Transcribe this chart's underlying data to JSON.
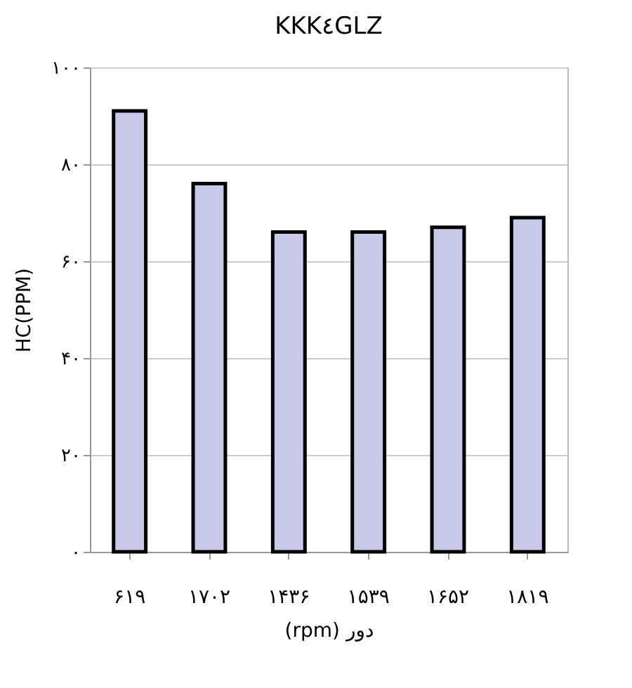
{
  "chart_data": {
    "type": "bar",
    "title": "KKK٤GLZ",
    "xlabel": "(rpm) دور",
    "ylabel": "HC(PPM)",
    "categories": [
      "۶۱۹",
      "۱۷۰۲",
      "۱۴۳۶",
      "۱۵۳۹",
      "۱۶۵۲",
      "۱۸۱۹"
    ],
    "values": [
      91,
      76,
      66,
      66,
      67,
      69
    ],
    "color": "#c8c8e8",
    "ylim": [
      0,
      100
    ],
    "yticks": [
      {
        "value": 0,
        "label": "۰"
      },
      {
        "value": 20,
        "label": "۲۰"
      },
      {
        "value": 40,
        "label": "۴۰"
      },
      {
        "value": 60,
        "label": "۶۰"
      },
      {
        "value": 80,
        "label": "۸۰"
      },
      {
        "value": 100,
        "label": "۱۰۰"
      }
    ],
    "grid": "y"
  }
}
